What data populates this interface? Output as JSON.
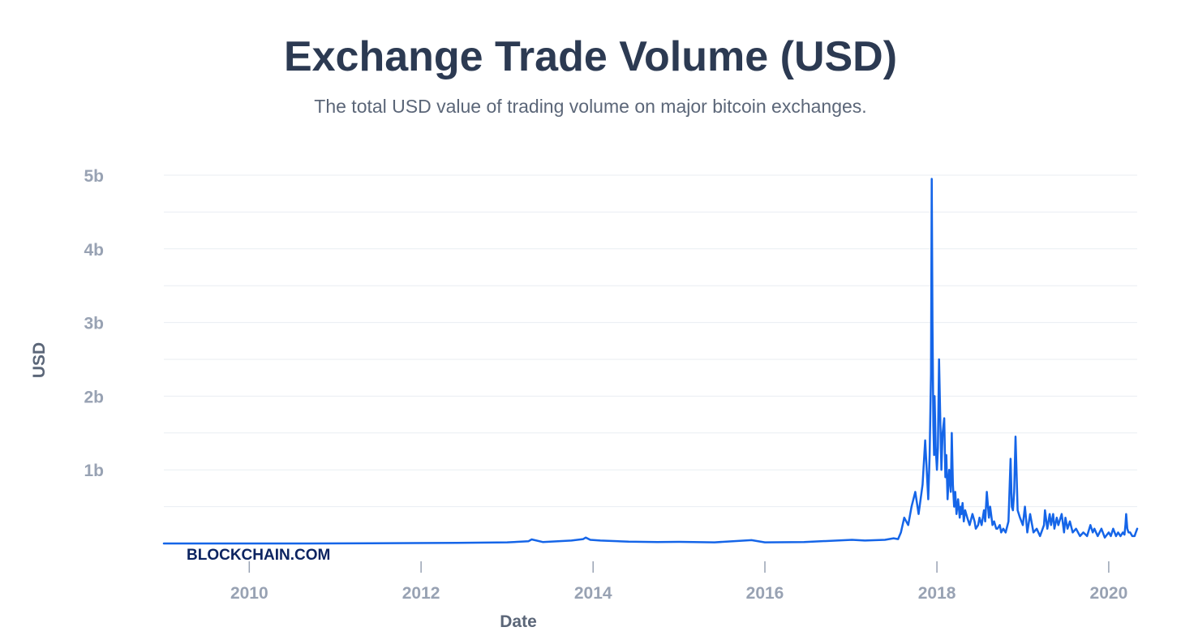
{
  "chart_data": {
    "type": "line",
    "title": "Exchange Trade Volume (USD)",
    "subtitle": "The total USD value of trading volume on major bitcoin exchanges.",
    "xlabel": "Date",
    "ylabel": "USD",
    "watermark": "BLOCKCHAIN.COM",
    "x_ticks": [
      {
        "value": "2010-01-01",
        "label": "2010"
      },
      {
        "value": "2012-01-01",
        "label": "2012"
      },
      {
        "value": "2014-01-01",
        "label": "2014"
      },
      {
        "value": "2016-01-01",
        "label": "2016"
      },
      {
        "value": "2018-01-01",
        "label": "2018"
      },
      {
        "value": "2020-01-01",
        "label": "2020"
      }
    ],
    "y_ticks": [
      {
        "value": 1000000000,
        "label": "1b"
      },
      {
        "value": 2000000000,
        "label": "2b"
      },
      {
        "value": 3000000000,
        "label": "3b"
      },
      {
        "value": 4000000000,
        "label": "4b"
      },
      {
        "value": 5000000000,
        "label": "5b"
      }
    ],
    "xlim": [
      "2009-01-03",
      "2020-05-01"
    ],
    "ylim": [
      0,
      5000000000
    ],
    "grid": true,
    "line_color": "#1565e8",
    "series": [
      {
        "x": [
          "2009-01-03",
          "2010-06-01",
          "2011-06-01",
          "2012-06-01",
          "2013-01-01",
          "2013-04-01",
          "2013-04-15",
          "2013-06-01",
          "2013-10-01",
          "2013-11-20",
          "2013-12-01",
          "2013-12-20",
          "2014-02-01",
          "2014-06-01",
          "2014-10-01",
          "2015-01-01",
          "2015-06-01",
          "2015-11-05",
          "2016-01-01",
          "2016-06-15",
          "2017-01-05",
          "2017-03-01",
          "2017-05-25",
          "2017-07-01",
          "2017-07-20",
          "2017-08-01",
          "2017-08-15",
          "2017-09-01",
          "2017-09-15",
          "2017-10-01",
          "2017-10-15",
          "2017-11-01",
          "2017-11-12",
          "2017-11-25",
          "2017-12-01",
          "2017-12-07",
          "2017-12-10",
          "2017-12-13",
          "2017-12-17",
          "2017-12-20",
          "2017-12-22",
          "2017-12-27",
          "2018-01-01",
          "2018-01-05",
          "2018-01-10",
          "2018-01-16",
          "2018-01-20",
          "2018-01-25",
          "2018-02-01",
          "2018-02-06",
          "2018-02-10",
          "2018-02-15",
          "2018-02-22",
          "2018-03-01",
          "2018-03-05",
          "2018-03-10",
          "2018-03-15",
          "2018-03-20",
          "2018-03-25",
          "2018-04-01",
          "2018-04-08",
          "2018-04-12",
          "2018-04-15",
          "2018-04-20",
          "2018-04-25",
          "2018-05-01",
          "2018-05-10",
          "2018-05-20",
          "2018-06-01",
          "2018-06-10",
          "2018-06-15",
          "2018-06-25",
          "2018-07-01",
          "2018-07-10",
          "2018-07-20",
          "2018-07-25",
          "2018-08-01",
          "2018-08-10",
          "2018-08-15",
          "2018-08-25",
          "2018-09-01",
          "2018-09-10",
          "2018-09-15",
          "2018-09-25",
          "2018-10-01",
          "2018-10-10",
          "2018-10-20",
          "2018-11-01",
          "2018-11-10",
          "2018-11-15",
          "2018-11-20",
          "2018-11-25",
          "2018-12-01",
          "2018-12-10",
          "2018-12-20",
          "2019-01-01",
          "2019-01-10",
          "2019-01-20",
          "2019-02-01",
          "2019-02-15",
          "2019-03-01",
          "2019-03-15",
          "2019-04-01",
          "2019-04-05",
          "2019-04-15",
          "2019-04-25",
          "2019-05-01",
          "2019-05-10",
          "2019-05-15",
          "2019-05-25",
          "2019-06-01",
          "2019-06-15",
          "2019-06-25",
          "2019-07-01",
          "2019-07-10",
          "2019-07-20",
          "2019-08-01",
          "2019-08-15",
          "2019-09-01",
          "2019-09-15",
          "2019-10-01",
          "2019-10-15",
          "2019-10-25",
          "2019-11-01",
          "2019-11-15",
          "2019-12-01",
          "2019-12-15",
          "2020-01-01",
          "2020-01-10",
          "2020-01-20",
          "2020-02-01",
          "2020-02-10",
          "2020-02-20",
          "2020-03-01",
          "2020-03-08",
          "2020-03-12",
          "2020-03-15",
          "2020-03-20",
          "2020-03-25",
          "2020-04-01",
          "2020-04-10",
          "2020-04-20",
          "2020-04-25",
          "2020-05-01"
        ],
        "y": [
          0,
          0,
          2000000,
          8000000,
          15000000,
          30000000,
          55000000,
          20000000,
          40000000,
          60000000,
          80000000,
          50000000,
          40000000,
          25000000,
          20000000,
          22000000,
          15000000,
          45000000,
          15000000,
          20000000,
          50000000,
          40000000,
          50000000,
          70000000,
          60000000,
          150000000,
          350000000,
          250000000,
          500000000,
          700000000,
          400000000,
          800000000,
          1400000000,
          600000000,
          1200000000,
          2300000000,
          4950000000,
          3000000000,
          1600000000,
          1200000000,
          2000000000,
          1300000000,
          1000000000,
          1300000000,
          2500000000,
          1600000000,
          1000000000,
          1500000000,
          1700000000,
          900000000,
          1200000000,
          600000000,
          1000000000,
          700000000,
          1500000000,
          800000000,
          500000000,
          700000000,
          400000000,
          600000000,
          350000000,
          500000000,
          400000000,
          550000000,
          300000000,
          450000000,
          350000000,
          250000000,
          400000000,
          300000000,
          200000000,
          250000000,
          350000000,
          250000000,
          450000000,
          300000000,
          700000000,
          350000000,
          500000000,
          250000000,
          300000000,
          200000000,
          200000000,
          250000000,
          150000000,
          200000000,
          150000000,
          300000000,
          1150000000,
          500000000,
          450000000,
          700000000,
          1450000000,
          450000000,
          350000000,
          250000000,
          500000000,
          150000000,
          400000000,
          150000000,
          200000000,
          100000000,
          250000000,
          450000000,
          200000000,
          400000000,
          250000000,
          400000000,
          200000000,
          350000000,
          250000000,
          400000000,
          150000000,
          350000000,
          200000000,
          300000000,
          150000000,
          200000000,
          100000000,
          150000000,
          100000000,
          250000000,
          150000000,
          200000000,
          100000000,
          200000000,
          80000000,
          150000000,
          100000000,
          200000000,
          100000000,
          150000000,
          100000000,
          150000000,
          120000000,
          250000000,
          400000000,
          200000000,
          150000000,
          150000000,
          100000000,
          100000000,
          150000000,
          200000000
        ]
      }
    ]
  }
}
